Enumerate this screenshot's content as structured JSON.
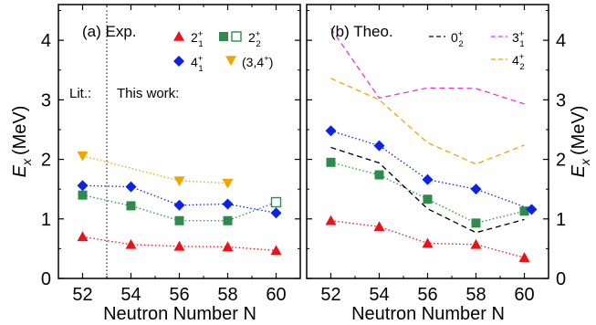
{
  "chart_data": [
    {
      "type": "scatter",
      "title": "(a) Exp.",
      "xlabel": "Neutron Number N",
      "ylabel": "E",
      "ylabel_sub": "x",
      "ylabel_unit": "(MeV)",
      "xlim": [
        51,
        61
      ],
      "ylim": [
        0,
        4.6
      ],
      "x_ticks": [
        52,
        54,
        56,
        58,
        60
      ],
      "y_ticks": [
        0,
        1,
        2,
        3,
        4
      ],
      "annotations": {
        "left": "Lit.:",
        "right": "This work:",
        "divider_x": 53
      },
      "series": [
        {
          "name": "2",
          "sub": "1",
          "sup": "+",
          "marker": "triangle-up",
          "color": "#e8131b",
          "line": "dotted",
          "points": [
            [
              52,
              0.7
            ],
            [
              54,
              0.57
            ],
            [
              56,
              0.54
            ],
            [
              58,
              0.53
            ],
            [
              60,
              0.47
            ]
          ]
        },
        {
          "name": "2",
          "sub": "2",
          "sup": "+",
          "marker": "square",
          "color": "#2e8b4e",
          "line": "dotted",
          "points": [
            [
              52,
              1.4
            ],
            [
              54,
              1.22
            ],
            [
              56,
              0.97
            ],
            [
              58,
              0.97
            ],
            [
              60,
              1.28
            ]
          ],
          "open_points": [
            60
          ]
        },
        {
          "name": "4",
          "sub": "1",
          "sup": "+",
          "marker": "diamond",
          "color": "#0a23e6",
          "line": "dotted",
          "points": [
            [
              52,
              1.56
            ],
            [
              54,
              1.54
            ],
            [
              56,
              1.23
            ],
            [
              58,
              1.25
            ],
            [
              60,
              1.1
            ]
          ]
        },
        {
          "name": "(3,4",
          "sup": "+",
          "suffix": ")",
          "marker": "triangle-down",
          "color": "#f0a500",
          "line": "dotted",
          "points": [
            [
              52,
              2.06
            ],
            [
              56,
              1.64
            ],
            [
              58,
              1.6
            ]
          ]
        }
      ]
    },
    {
      "type": "line",
      "title": "(b) Theo.",
      "xlabel": "Neutron Number N",
      "ylabel": "E",
      "ylabel_sub": "x",
      "ylabel_unit": "(MeV)",
      "xlim": [
        51,
        61
      ],
      "ylim": [
        0,
        4.6
      ],
      "x_ticks": [
        52,
        54,
        56,
        58,
        60
      ],
      "y_ticks": [
        0,
        1,
        2,
        3,
        4
      ],
      "series": [
        {
          "name": "2",
          "sub": "1",
          "sup": "+",
          "marker": "triangle-up",
          "color": "#e8131b",
          "line": "dotted",
          "points": [
            [
              52,
              0.97
            ],
            [
              54,
              0.87
            ],
            [
              56,
              0.59
            ],
            [
              58,
              0.57
            ],
            [
              60,
              0.35
            ]
          ]
        },
        {
          "name": "2",
          "sub": "2",
          "sup": "+",
          "marker": "square",
          "color": "#2e8b4e",
          "line": "dotted",
          "points": [
            [
              52,
              1.95
            ],
            [
              54,
              1.74
            ],
            [
              56,
              1.33
            ],
            [
              58,
              0.93
            ],
            [
              60,
              1.13
            ]
          ]
        },
        {
          "name": "4",
          "sub": "1",
          "sup": "+",
          "marker": "diamond",
          "color": "#0a23e6",
          "line": "dotted",
          "points": [
            [
              52,
              2.48
            ],
            [
              54,
              2.23
            ],
            [
              56,
              1.66
            ],
            [
              58,
              1.5
            ],
            [
              60.3,
              1.16
            ]
          ]
        },
        {
          "name": "0",
          "sub": "2",
          "sup": "+",
          "marker": "none",
          "color": "#000000",
          "line": "dashed",
          "points": [
            [
              52,
              2.2
            ],
            [
              54,
              1.94
            ],
            [
              56,
              1.17
            ],
            [
              58,
              0.77
            ],
            [
              60,
              0.99
            ]
          ]
        },
        {
          "name": "3",
          "sub": "1",
          "sup": "+",
          "marker": "none",
          "color": "#e935d8",
          "line": "dashed",
          "points": [
            [
              52,
              4.2
            ],
            [
              54,
              3.03
            ],
            [
              56,
              3.2
            ],
            [
              58,
              3.19
            ],
            [
              60,
              2.93
            ]
          ]
        },
        {
          "name": "4",
          "sub": "2",
          "sup": "+",
          "marker": "none",
          "color": "#f0a500",
          "line": "dashed",
          "points": [
            [
              52,
              3.36
            ],
            [
              54,
              3.0
            ],
            [
              56,
              2.28
            ],
            [
              58,
              1.92
            ],
            [
              60,
              2.24
            ]
          ]
        }
      ]
    }
  ]
}
